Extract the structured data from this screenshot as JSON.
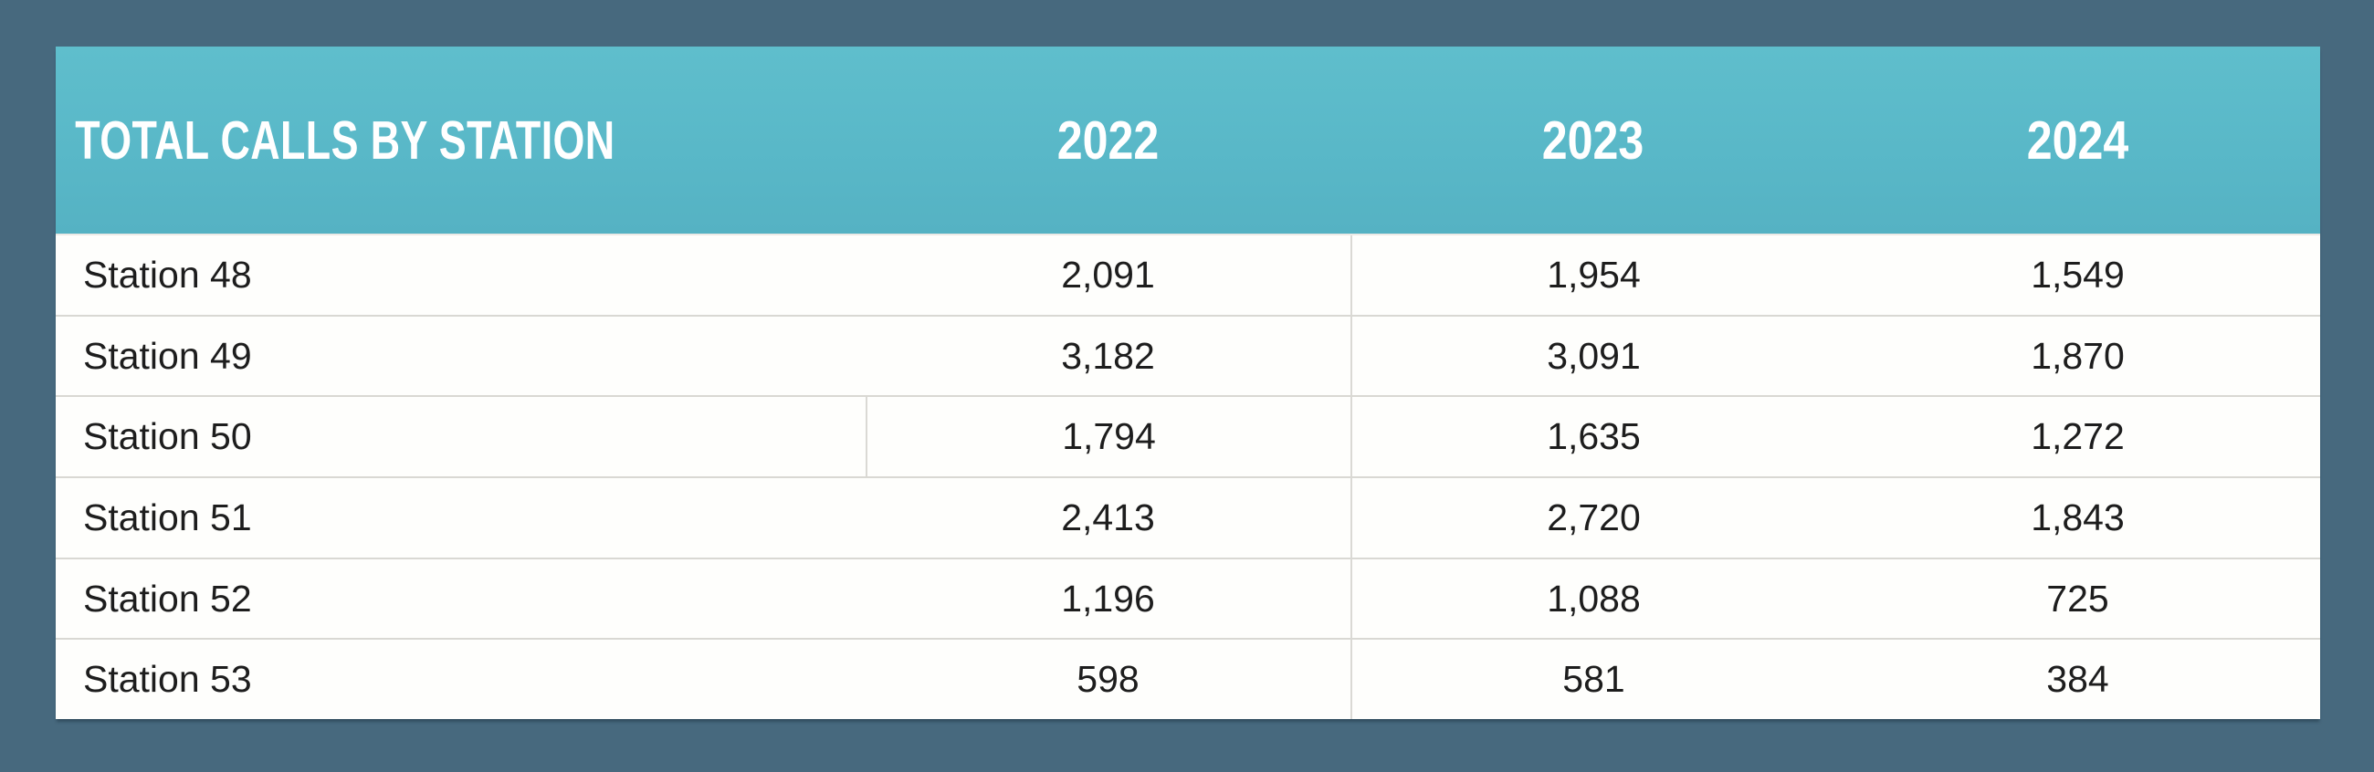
{
  "table": {
    "title": "TOTAL CALLS BY STATION",
    "columns": [
      "2022",
      "2023",
      "2024"
    ],
    "rows": [
      {
        "station": "Station 48",
        "values": [
          "2,091",
          "1,954",
          "1,549"
        ]
      },
      {
        "station": "Station 49",
        "values": [
          "3,182",
          "3,091",
          "1,870"
        ]
      },
      {
        "station": "Station 50",
        "values": [
          "1,794",
          "1,635",
          "1,272"
        ]
      },
      {
        "station": "Station 51",
        "values": [
          "2,413",
          "2,720",
          "1,843"
        ]
      },
      {
        "station": "Station 52",
        "values": [
          "1,196",
          "1,088",
          "725"
        ]
      },
      {
        "station": "Station 53",
        "values": [
          "598",
          "581",
          "384"
        ]
      }
    ]
  },
  "chart_data": {
    "type": "table",
    "title": "TOTAL CALLS BY STATION",
    "categories": [
      "Station 48",
      "Station 49",
      "Station 50",
      "Station 51",
      "Station 52",
      "Station 53"
    ],
    "series": [
      {
        "name": "2022",
        "values": [
          2091,
          3182,
          1794,
          2413,
          1196,
          598
        ]
      },
      {
        "name": "2023",
        "values": [
          1954,
          3091,
          1635,
          2720,
          1088,
          581
        ]
      },
      {
        "name": "2024",
        "values": [
          1549,
          1870,
          1272,
          1843,
          725,
          384
        ]
      }
    ],
    "legend_position": "none",
    "grid": "horizontal-row-separators"
  },
  "colors": {
    "page_background": "#47697e",
    "header_background": "#59b8c8",
    "header_text": "#ffffff",
    "row_background": "#fefefc",
    "row_border": "#d9d8d3",
    "body_text": "#1d1d1d"
  }
}
